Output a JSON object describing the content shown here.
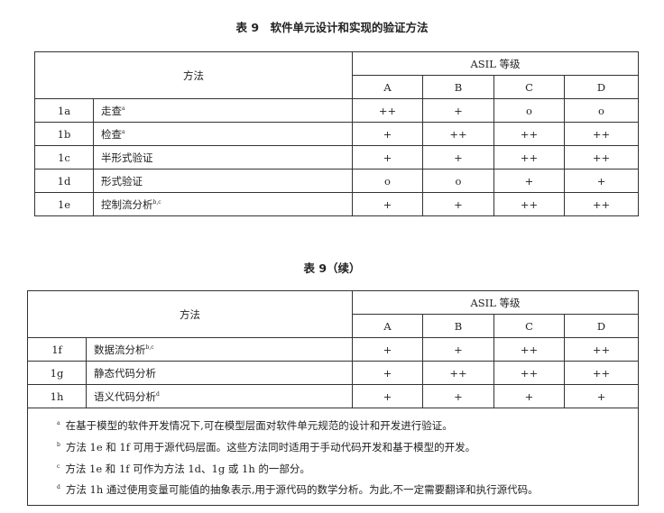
{
  "table1": {
    "title": "表 9　软件单元设计和实现的验证方法",
    "method_header": "方法",
    "asil_header": "ASIL 等级",
    "levels": [
      "A",
      "B",
      "C",
      "D"
    ],
    "rows": [
      {
        "id": "1a",
        "name": "走查",
        "note": "a",
        "values": [
          "++",
          "+",
          "o",
          "o"
        ]
      },
      {
        "id": "1b",
        "name": "检查",
        "note": "a",
        "values": [
          "+",
          "++",
          "++",
          "++"
        ]
      },
      {
        "id": "1c",
        "name": "半形式验证",
        "note": "",
        "values": [
          "+",
          "+",
          "++",
          "++"
        ]
      },
      {
        "id": "1d",
        "name": "形式验证",
        "note": "",
        "values": [
          "o",
          "o",
          "+",
          "+"
        ]
      },
      {
        "id": "1e",
        "name": "控制流分析",
        "note": "b,c",
        "values": [
          "+",
          "+",
          "++",
          "++"
        ]
      }
    ]
  },
  "table2": {
    "title": "表 9（续）",
    "method_header": "方法",
    "asil_header": "ASIL 等级",
    "levels": [
      "A",
      "B",
      "C",
      "D"
    ],
    "rows": [
      {
        "id": "1f",
        "name": "数据流分析",
        "note": "b,c",
        "values": [
          "+",
          "+",
          "++",
          "++"
        ]
      },
      {
        "id": "1g",
        "name": "静态代码分析",
        "note": "",
        "values": [
          "+",
          "++",
          "++",
          "++"
        ]
      },
      {
        "id": "1h",
        "name": "语义代码分析",
        "note": "d",
        "values": [
          "+",
          "+",
          "+",
          "+"
        ]
      }
    ],
    "footnotes": [
      {
        "mark": "a",
        "text": "在基于模型的软件开发情况下,可在模型层面对软件单元规范的设计和开发进行验证。"
      },
      {
        "mark": "b",
        "text": "方法 1e 和 1f 可用于源代码层面。这些方法同时适用于手动代码开发和基于模型的开发。"
      },
      {
        "mark": "c",
        "text": "方法 1e 和 1f 可作为方法 1d、1g 或 1h 的一部分。"
      },
      {
        "mark": "d",
        "text": "方法 1h 通过使用变量可能值的抽象表示,用于源代码的数学分析。为此,不一定需要翻译和执行源代码。"
      }
    ]
  }
}
